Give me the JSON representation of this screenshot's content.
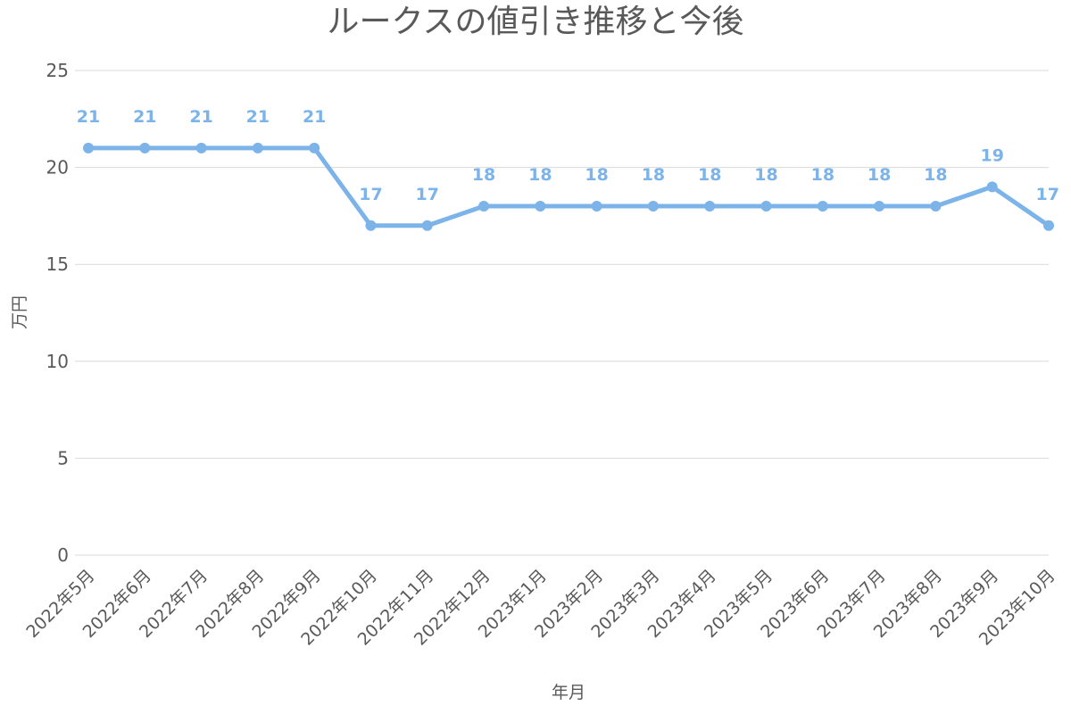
{
  "chart_data": {
    "type": "line",
    "title": "ルークスの値引き推移と今後",
    "xlabel": "年月",
    "ylabel": "万円",
    "ylim": [
      0,
      25
    ],
    "yticks": [
      0,
      5,
      10,
      15,
      20,
      25
    ],
    "grid": true,
    "categories": [
      "2022年5月",
      "2022年6月",
      "2022年7月",
      "2022年8月",
      "2022年9月",
      "2022年10月",
      "2022年11月",
      "2022年12月",
      "2023年1月",
      "2023年2月",
      "2023年3月",
      "2023年4月",
      "2023年5月",
      "2023年6月",
      "2023年7月",
      "2023年8月",
      "2023年9月",
      "2023年10月"
    ],
    "series": [
      {
        "values": [
          21,
          21,
          21,
          21,
          21,
          17,
          17,
          18,
          18,
          18,
          18,
          18,
          18,
          18,
          18,
          18,
          19,
          17
        ],
        "color": "#7cb4ea",
        "data_labels": true
      }
    ]
  }
}
